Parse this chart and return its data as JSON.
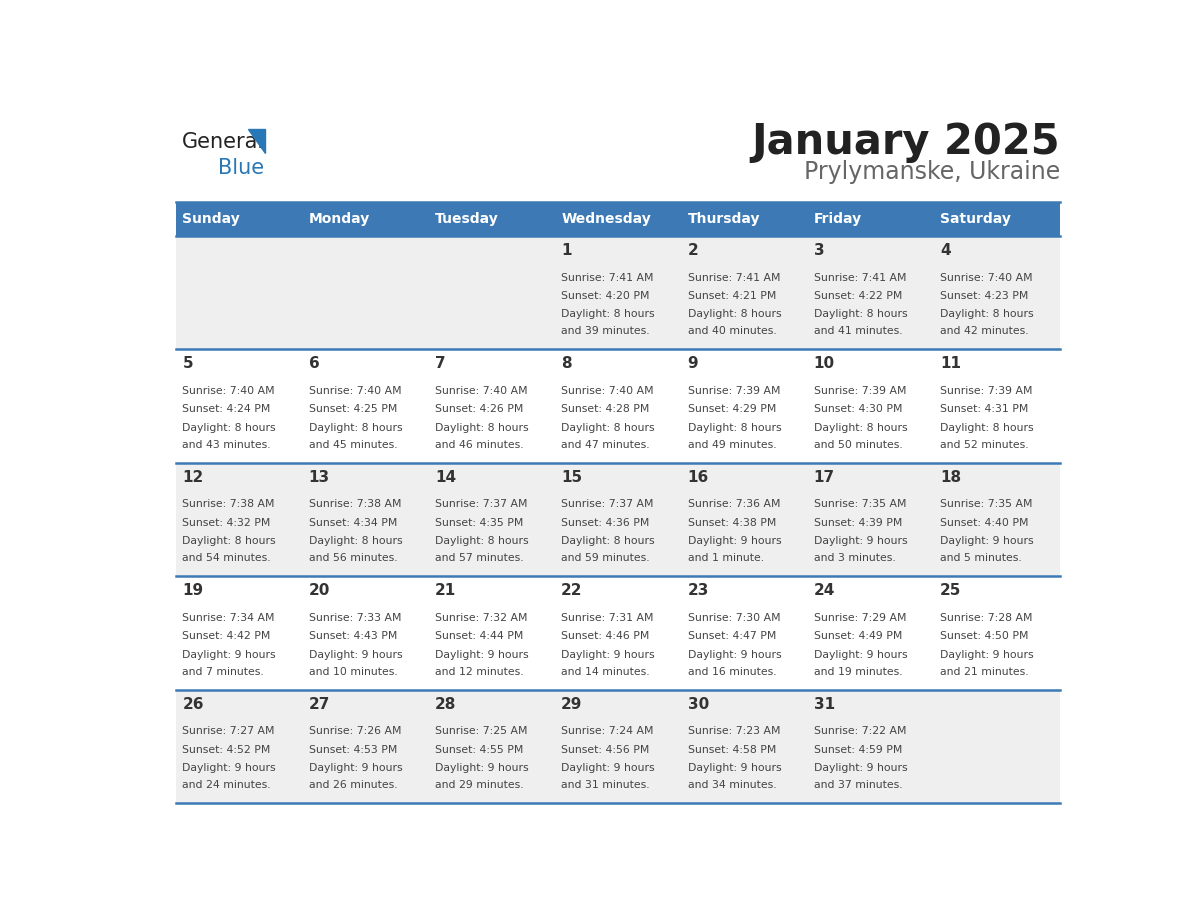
{
  "title": "January 2025",
  "subtitle": "Prylymanske, Ukraine",
  "header_bg": "#3d7ab5",
  "header_text": "#ffffff",
  "cell_bg_odd": "#efefef",
  "cell_bg_even": "#ffffff",
  "days_of_week": [
    "Sunday",
    "Monday",
    "Tuesday",
    "Wednesday",
    "Thursday",
    "Friday",
    "Saturday"
  ],
  "calendar": [
    [
      {
        "day": "",
        "sunrise": "",
        "sunset": "",
        "daylight": ""
      },
      {
        "day": "",
        "sunrise": "",
        "sunset": "",
        "daylight": ""
      },
      {
        "day": "",
        "sunrise": "",
        "sunset": "",
        "daylight": ""
      },
      {
        "day": "1",
        "sunrise": "7:41 AM",
        "sunset": "4:20 PM",
        "daylight": "8 hours and 39 minutes."
      },
      {
        "day": "2",
        "sunrise": "7:41 AM",
        "sunset": "4:21 PM",
        "daylight": "8 hours and 40 minutes."
      },
      {
        "day": "3",
        "sunrise": "7:41 AM",
        "sunset": "4:22 PM",
        "daylight": "8 hours and 41 minutes."
      },
      {
        "day": "4",
        "sunrise": "7:40 AM",
        "sunset": "4:23 PM",
        "daylight": "8 hours and 42 minutes."
      }
    ],
    [
      {
        "day": "5",
        "sunrise": "7:40 AM",
        "sunset": "4:24 PM",
        "daylight": "8 hours and 43 minutes."
      },
      {
        "day": "6",
        "sunrise": "7:40 AM",
        "sunset": "4:25 PM",
        "daylight": "8 hours and 45 minutes."
      },
      {
        "day": "7",
        "sunrise": "7:40 AM",
        "sunset": "4:26 PM",
        "daylight": "8 hours and 46 minutes."
      },
      {
        "day": "8",
        "sunrise": "7:40 AM",
        "sunset": "4:28 PM",
        "daylight": "8 hours and 47 minutes."
      },
      {
        "day": "9",
        "sunrise": "7:39 AM",
        "sunset": "4:29 PM",
        "daylight": "8 hours and 49 minutes."
      },
      {
        "day": "10",
        "sunrise": "7:39 AM",
        "sunset": "4:30 PM",
        "daylight": "8 hours and 50 minutes."
      },
      {
        "day": "11",
        "sunrise": "7:39 AM",
        "sunset": "4:31 PM",
        "daylight": "8 hours and 52 minutes."
      }
    ],
    [
      {
        "day": "12",
        "sunrise": "7:38 AM",
        "sunset": "4:32 PM",
        "daylight": "8 hours and 54 minutes."
      },
      {
        "day": "13",
        "sunrise": "7:38 AM",
        "sunset": "4:34 PM",
        "daylight": "8 hours and 56 minutes."
      },
      {
        "day": "14",
        "sunrise": "7:37 AM",
        "sunset": "4:35 PM",
        "daylight": "8 hours and 57 minutes."
      },
      {
        "day": "15",
        "sunrise": "7:37 AM",
        "sunset": "4:36 PM",
        "daylight": "8 hours and 59 minutes."
      },
      {
        "day": "16",
        "sunrise": "7:36 AM",
        "sunset": "4:38 PM",
        "daylight": "9 hours and 1 minute."
      },
      {
        "day": "17",
        "sunrise": "7:35 AM",
        "sunset": "4:39 PM",
        "daylight": "9 hours and 3 minutes."
      },
      {
        "day": "18",
        "sunrise": "7:35 AM",
        "sunset": "4:40 PM",
        "daylight": "9 hours and 5 minutes."
      }
    ],
    [
      {
        "day": "19",
        "sunrise": "7:34 AM",
        "sunset": "4:42 PM",
        "daylight": "9 hours and 7 minutes."
      },
      {
        "day": "20",
        "sunrise": "7:33 AM",
        "sunset": "4:43 PM",
        "daylight": "9 hours and 10 minutes."
      },
      {
        "day": "21",
        "sunrise": "7:32 AM",
        "sunset": "4:44 PM",
        "daylight": "9 hours and 12 minutes."
      },
      {
        "day": "22",
        "sunrise": "7:31 AM",
        "sunset": "4:46 PM",
        "daylight": "9 hours and 14 minutes."
      },
      {
        "day": "23",
        "sunrise": "7:30 AM",
        "sunset": "4:47 PM",
        "daylight": "9 hours and 16 minutes."
      },
      {
        "day": "24",
        "sunrise": "7:29 AM",
        "sunset": "4:49 PM",
        "daylight": "9 hours and 19 minutes."
      },
      {
        "day": "25",
        "sunrise": "7:28 AM",
        "sunset": "4:50 PM",
        "daylight": "9 hours and 21 minutes."
      }
    ],
    [
      {
        "day": "26",
        "sunrise": "7:27 AM",
        "sunset": "4:52 PM",
        "daylight": "9 hours and 24 minutes."
      },
      {
        "day": "27",
        "sunrise": "7:26 AM",
        "sunset": "4:53 PM",
        "daylight": "9 hours and 26 minutes."
      },
      {
        "day": "28",
        "sunrise": "7:25 AM",
        "sunset": "4:55 PM",
        "daylight": "9 hours and 29 minutes."
      },
      {
        "day": "29",
        "sunrise": "7:24 AM",
        "sunset": "4:56 PM",
        "daylight": "9 hours and 31 minutes."
      },
      {
        "day": "30",
        "sunrise": "7:23 AM",
        "sunset": "4:58 PM",
        "daylight": "9 hours and 34 minutes."
      },
      {
        "day": "31",
        "sunrise": "7:22 AM",
        "sunset": "4:59 PM",
        "daylight": "9 hours and 37 minutes."
      },
      {
        "day": "",
        "sunrise": "",
        "sunset": "",
        "daylight": ""
      }
    ]
  ],
  "logo_text_general": "General",
  "logo_text_blue": "Blue",
  "logo_color_general": "#222222",
  "logo_color_blue": "#2878b8",
  "separator_color": "#3d7ab5",
  "title_color": "#222222",
  "subtitle_color": "#666666",
  "day_num_color": "#333333",
  "cell_text_color": "#444444"
}
